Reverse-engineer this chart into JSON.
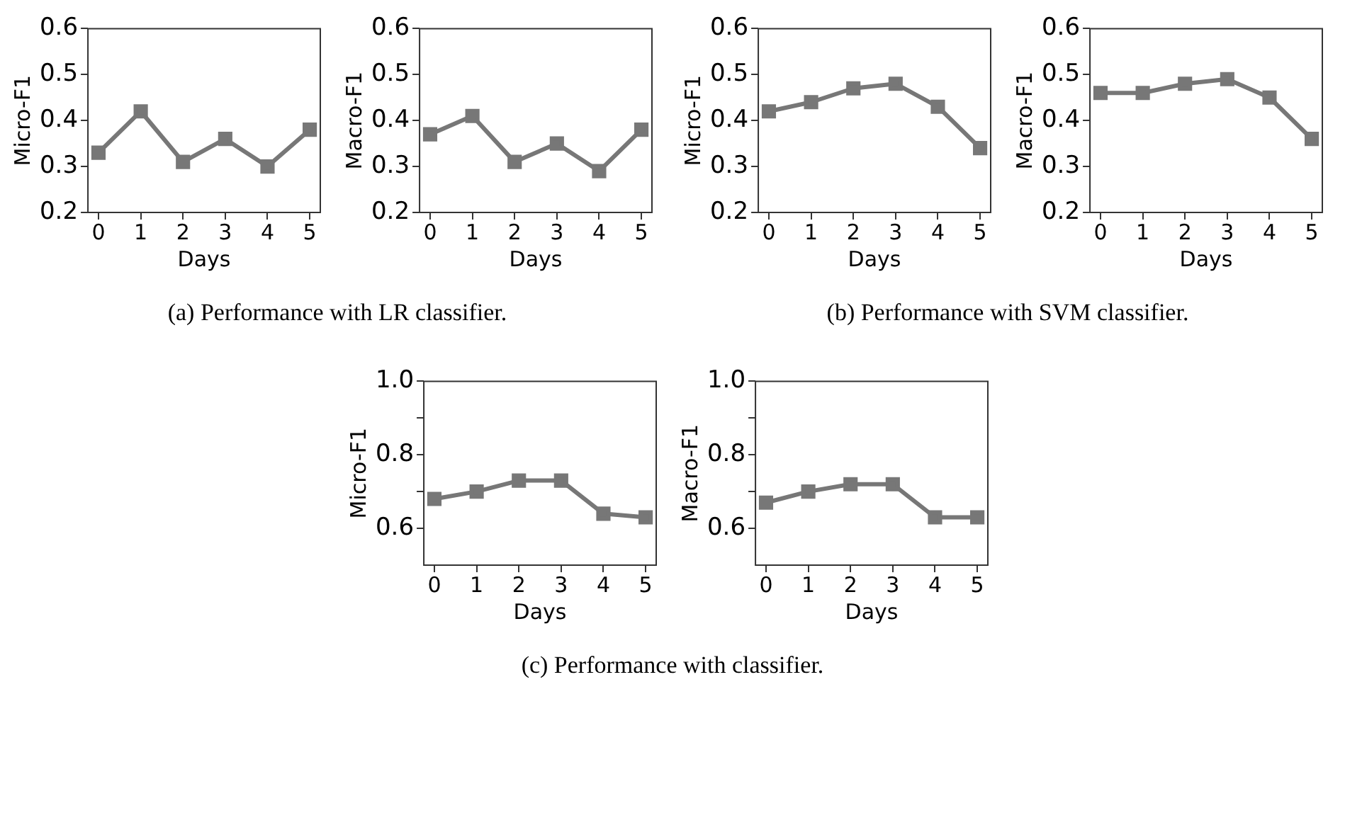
{
  "chart_data": [
    {
      "type": "line",
      "xlabel": "Days",
      "ylabel": "Micro-F1",
      "x": [
        0,
        1,
        2,
        3,
        4,
        5
      ],
      "values": [
        0.33,
        0.42,
        0.31,
        0.36,
        0.3,
        0.38
      ],
      "color": "#777777",
      "marker": "square",
      "xlim": [
        -0.25,
        5.25
      ],
      "xticks": [
        0,
        1,
        2,
        3,
        4,
        5
      ],
      "ylim": [
        0.2,
        0.6
      ],
      "yticks": [
        0.2,
        0.3,
        0.4,
        0.5,
        0.6
      ],
      "annotations": [
        "(a) Performance with LR classifier."
      ]
    },
    {
      "type": "line",
      "xlabel": "Days",
      "ylabel": "Macro-F1",
      "x": [
        0,
        1,
        2,
        3,
        4,
        5
      ],
      "values": [
        0.37,
        0.41,
        0.31,
        0.35,
        0.29,
        0.38
      ],
      "color": "#777777",
      "marker": "square",
      "xlim": [
        -0.25,
        5.25
      ],
      "xticks": [
        0,
        1,
        2,
        3,
        4,
        5
      ],
      "ylim": [
        0.2,
        0.6
      ],
      "yticks": [
        0.2,
        0.3,
        0.4,
        0.5,
        0.6
      ]
    },
    {
      "type": "line",
      "xlabel": "Days",
      "ylabel": "Micro-F1",
      "x": [
        0,
        1,
        2,
        3,
        4,
        5
      ],
      "values": [
        0.42,
        0.44,
        0.47,
        0.48,
        0.43,
        0.34
      ],
      "color": "#777777",
      "marker": "square",
      "xlim": [
        -0.25,
        5.25
      ],
      "xticks": [
        0,
        1,
        2,
        3,
        4,
        5
      ],
      "ylim": [
        0.2,
        0.6
      ],
      "yticks": [
        0.2,
        0.3,
        0.4,
        0.5,
        0.6
      ],
      "annotations": [
        "(b) Performance with SVM classifier."
      ]
    },
    {
      "type": "line",
      "xlabel": "Days",
      "ylabel": "Macro-F1",
      "x": [
        0,
        1,
        2,
        3,
        4,
        5
      ],
      "values": [
        0.46,
        0.46,
        0.48,
        0.49,
        0.45,
        0.36
      ],
      "color": "#777777",
      "marker": "square",
      "xlim": [
        -0.25,
        5.25
      ],
      "xticks": [
        0,
        1,
        2,
        3,
        4,
        5
      ],
      "ylim": [
        0.2,
        0.6
      ],
      "yticks": [
        0.2,
        0.3,
        0.4,
        0.5,
        0.6
      ]
    },
    {
      "type": "line",
      "xlabel": "Days",
      "ylabel": "Micro-F1",
      "x": [
        0,
        1,
        2,
        3,
        4,
        5
      ],
      "values": [
        0.68,
        0.7,
        0.73,
        0.73,
        0.64,
        0.63
      ],
      "color": "#777777",
      "marker": "square",
      "xlim": [
        -0.25,
        5.25
      ],
      "xticks": [
        0,
        1,
        2,
        3,
        4,
        5
      ],
      "ylim": [
        0.5,
        1.0
      ],
      "yticks": [
        0.6,
        {
          "value": 0.7,
          "label": null
        },
        0.8,
        {
          "value": 0.9,
          "label": null
        },
        {
          "value": 1.0,
          "label": "1.0"
        }
      ],
      "annotations": [
        "(c) Performance with classifier."
      ]
    },
    {
      "type": "line",
      "xlabel": "Days",
      "ylabel": "Macro-F1",
      "x": [
        0,
        1,
        2,
        3,
        4,
        5
      ],
      "values": [
        0.67,
        0.7,
        0.72,
        0.72,
        0.63,
        0.63
      ],
      "color": "#777777",
      "marker": "square",
      "xlim": [
        -0.25,
        5.25
      ],
      "xticks": [
        0,
        1,
        2,
        3,
        4,
        5
      ],
      "ylim": [
        0.5,
        1.0
      ],
      "yticks": [
        0.6,
        {
          "value": 0.7,
          "label": null
        },
        0.8,
        {
          "value": 0.9,
          "label": null
        },
        {
          "value": 1.0,
          "label": "1.0"
        }
      ]
    }
  ]
}
